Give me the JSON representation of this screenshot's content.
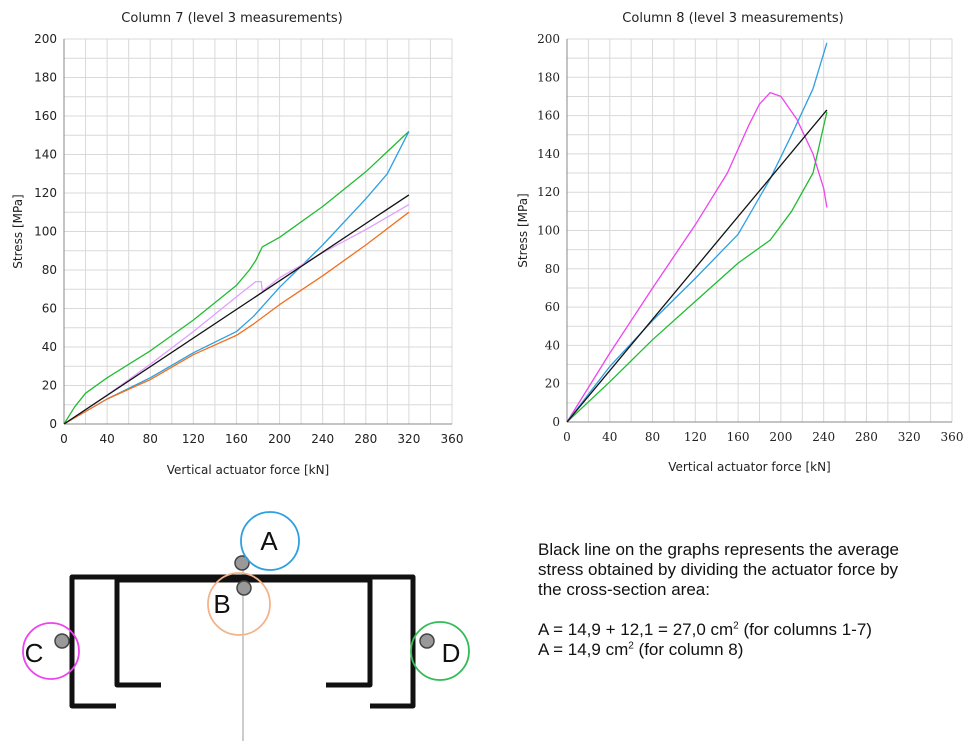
{
  "chart_data": [
    {
      "type": "line",
      "title": "Column 7 (level 3 measurements)",
      "xlabel": "Vertical actuator force [kN]",
      "ylabel": "Stress [MPa]",
      "xlim": [
        0,
        360
      ],
      "ylim": [
        0,
        200
      ],
      "x_ticks": [
        "0",
        "40",
        "80",
        "120",
        "160",
        "200",
        "240",
        "280",
        "320",
        "360"
      ],
      "y_ticks": [
        "0",
        "20",
        "40",
        "60",
        "80",
        "100",
        "120",
        "140",
        "160",
        "180",
        "200"
      ],
      "grid": true,
      "series": [
        {
          "color": "#22bb33",
          "points": [
            [
              0,
              0
            ],
            [
              10,
              9
            ],
            [
              20,
              16
            ],
            [
              40,
              24
            ],
            [
              80,
              38
            ],
            [
              120,
              54
            ],
            [
              160,
              72
            ],
            [
              172,
              80
            ],
            [
              178,
              85
            ],
            [
              184,
              92
            ],
            [
              200,
              97
            ],
            [
              240,
              113
            ],
            [
              280,
              131
            ],
            [
              320,
              152
            ]
          ]
        },
        {
          "color": "#2e9fe0",
          "points": [
            [
              0,
              0
            ],
            [
              40,
              13
            ],
            [
              80,
              24
            ],
            [
              120,
              37
            ],
            [
              160,
              48
            ],
            [
              176,
              56
            ],
            [
              200,
              71
            ],
            [
              240,
              93
            ],
            [
              280,
              117
            ],
            [
              300,
              130
            ],
            [
              320,
              152
            ]
          ]
        },
        {
          "color": "#e0a0ff",
          "points": [
            [
              0,
              0
            ],
            [
              40,
              15
            ],
            [
              80,
              31
            ],
            [
              120,
              48
            ],
            [
              160,
              66
            ],
            [
              178,
              74
            ],
            [
              183,
              74
            ],
            [
              184,
              69
            ],
            [
              200,
              76
            ],
            [
              240,
              89
            ],
            [
              280,
              101
            ],
            [
              320,
              114
            ]
          ]
        },
        {
          "color": "#f07020",
          "points": [
            [
              0,
              0
            ],
            [
              40,
              13
            ],
            [
              80,
              23
            ],
            [
              120,
              36
            ],
            [
              160,
              46
            ],
            [
              176,
              52
            ],
            [
              200,
              62
            ],
            [
              240,
              77
            ],
            [
              280,
              93
            ],
            [
              320,
              110
            ]
          ]
        },
        {
          "color": "#111111",
          "points": [
            [
              0,
              0
            ],
            [
              320,
              119
            ]
          ]
        }
      ]
    },
    {
      "type": "line",
      "title": "Column 8 (level 3 measurements)",
      "xlabel": "Vertical actuator force [kN]",
      "ylabel": "Stress [MPa]",
      "xlim": [
        0,
        360
      ],
      "ylim": [
        0,
        200
      ],
      "x_ticks": [
        "0",
        "40",
        "80",
        "120",
        "160",
        "200",
        "240",
        "280",
        "320",
        "360"
      ],
      "y_ticks": [
        "0",
        "20",
        "40",
        "60",
        "80",
        "100",
        "120",
        "140",
        "160",
        "180",
        "200"
      ],
      "grid": true,
      "series": [
        {
          "color": "#ee44ee",
          "points": [
            [
              0,
              0
            ],
            [
              40,
              36
            ],
            [
              80,
              70
            ],
            [
              120,
              103
            ],
            [
              150,
              130
            ],
            [
              170,
              155
            ],
            [
              180,
              166
            ],
            [
              190,
              172
            ],
            [
              200,
              170
            ],
            [
              215,
              158
            ],
            [
              230,
              140
            ],
            [
              240,
              122
            ],
            [
              243,
              112
            ]
          ]
        },
        {
          "color": "#2e9fe0",
          "points": [
            [
              0,
              0
            ],
            [
              40,
              29
            ],
            [
              80,
              53
            ],
            [
              120,
              75
            ],
            [
              160,
              98
            ],
            [
              190,
              127
            ],
            [
              210,
              150
            ],
            [
              230,
              174
            ],
            [
              243,
              198
            ]
          ]
        },
        {
          "color": "#22bb33",
          "points": [
            [
              0,
              0
            ],
            [
              40,
              21
            ],
            [
              80,
              43
            ],
            [
              120,
              63
            ],
            [
              160,
              83
            ],
            [
              190,
              95
            ],
            [
              210,
              110
            ],
            [
              230,
              130
            ],
            [
              243,
              162
            ]
          ]
        },
        {
          "color": "#111111",
          "points": [
            [
              0,
              0
            ],
            [
              243,
              163
            ]
          ]
        }
      ]
    }
  ],
  "diagram": {
    "labels": {
      "a": "A",
      "b": "B",
      "c": "C",
      "d": "D"
    },
    "colors": {
      "a": "#2e9fe0",
      "b": "#f2b48a",
      "c": "#ee44ee",
      "d": "#33bb55"
    }
  },
  "note": {
    "line1": "Black line on the graphs represents the average",
    "line2": "stress obtained by dividing the actuator force by",
    "line3": "the cross-section area:",
    "formula1": "A = 14,9 + 12,1 = 27,0 cm",
    "formula1_sup": "2",
    "formula1_end": " (for columns 1-7)",
    "formula2": "A = 14,9 cm",
    "formula2_sup": "2",
    "formula2_end": " (for column 8)"
  }
}
